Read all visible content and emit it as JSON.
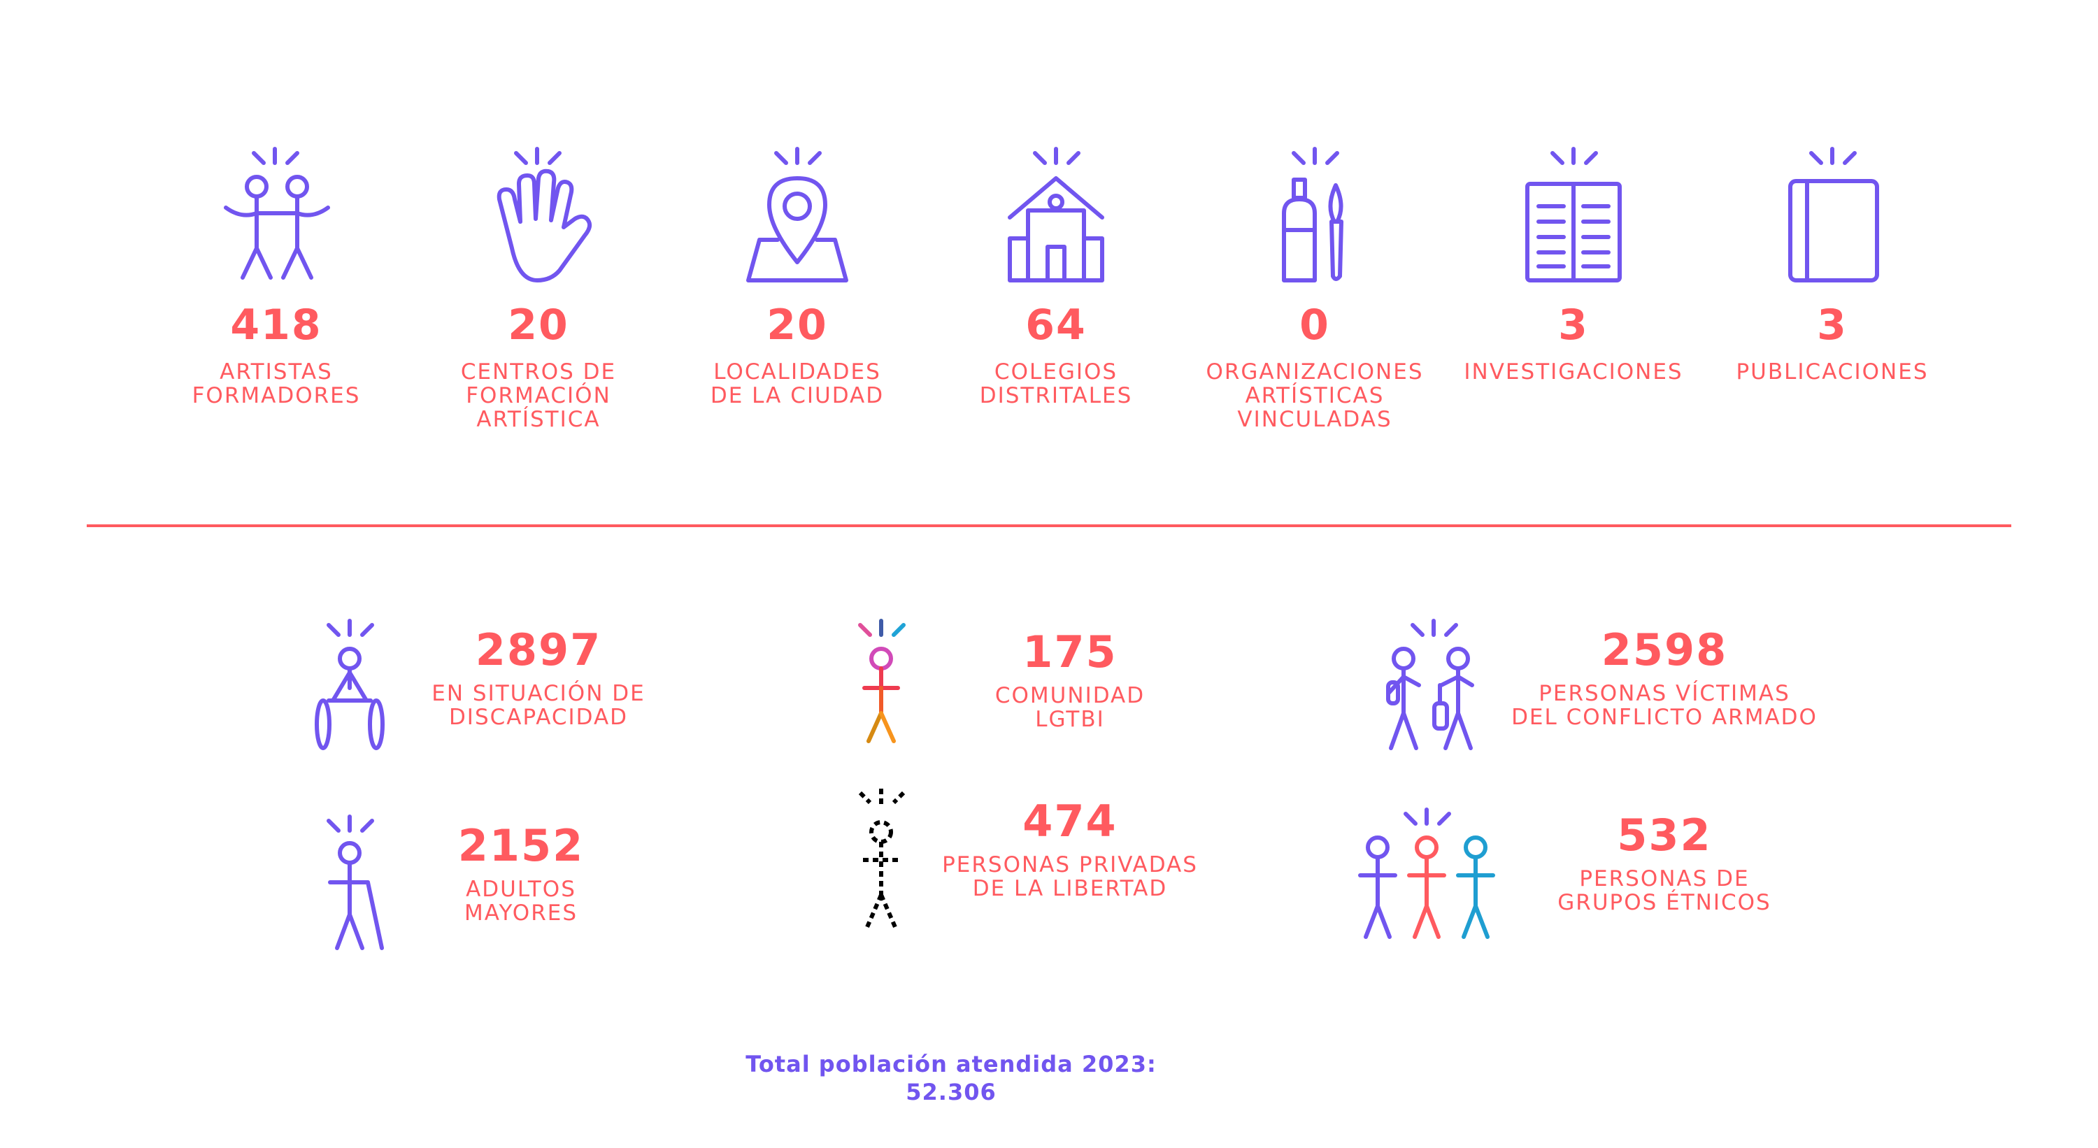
{
  "stats_top": [
    {
      "value": "418",
      "label": "ARTISTAS\nFORMADORES",
      "icon": "artists-pair-icon"
    },
    {
      "value": "20",
      "label": "CENTROS DE\nFORMACIÓN\nARTÍSTICA",
      "icon": "raised-hand-icon"
    },
    {
      "value": "20",
      "label": "LOCALIDADES\nDE LA CIUDAD",
      "icon": "map-pin-icon"
    },
    {
      "value": "64",
      "label": "COLEGIOS\nDISTRITALES",
      "icon": "school-building-icon"
    },
    {
      "value": "0",
      "label": "ORGANIZACIONES\nARTÍSTICAS\nVINCULADAS",
      "icon": "paint-tube-brush-icon"
    },
    {
      "value": "3",
      "label": "INVESTIGACIONES",
      "icon": "open-book-icon"
    },
    {
      "value": "3",
      "label": "PUBLICACIONES",
      "icon": "closed-book-icon"
    }
  ],
  "stats_population": [
    {
      "value": "2897",
      "label": "EN SITUACIÓN DE\nDISCAPACIDAD",
      "icon": "wheelchair-person-icon"
    },
    {
      "value": "175",
      "label": "COMUNIDAD\nLGTBI",
      "icon": "rainbow-person-icon"
    },
    {
      "value": "2598",
      "label": "PERSONAS VÍCTIMAS\nDEL CONFLICTO ARMADO",
      "icon": "displaced-persons-icon"
    },
    {
      "value": "2152",
      "label": "ADULTOS\nMAYORES",
      "icon": "person-with-cane-icon"
    },
    {
      "value": "474",
      "label": "PERSONAS PRIVADAS\nDE LA LIBERTAD",
      "icon": "striped-person-icon"
    },
    {
      "value": "532",
      "label": "PERSONAS DE\nGRUPOS ÉTNICOS",
      "icon": "three-persons-icon"
    }
  ],
  "footer": {
    "total": "Total población atendida 2023: 52.306"
  },
  "colors": {
    "accent": "#ff5a5f",
    "icon": "#7155ef"
  }
}
